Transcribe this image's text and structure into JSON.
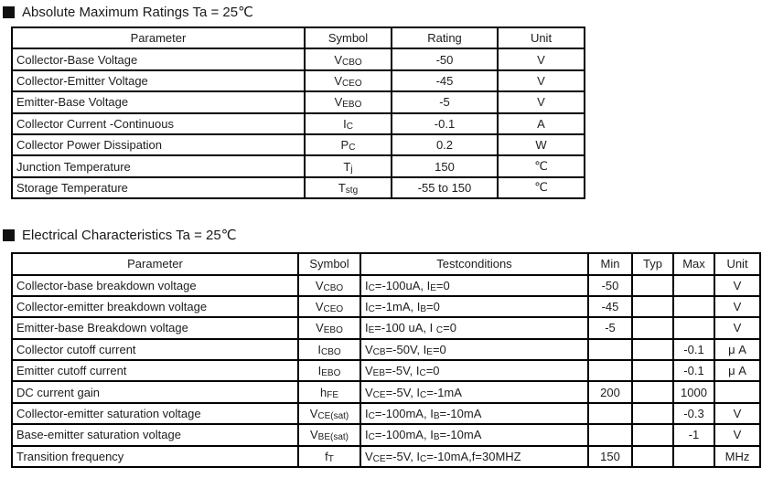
{
  "colors": {
    "background": "#ffffff",
    "text": "#1d1d1d",
    "border": "#000000",
    "bullet": "#111111"
  },
  "abs_max": {
    "title": "Absolute Maximum Ratings Ta = 25℃",
    "headers": [
      "Parameter",
      "Symbol",
      "Rating",
      "Unit"
    ],
    "rows": [
      {
        "parameter": "Collector-Base Voltage",
        "symbol": "V~CBO~",
        "rating": "-50",
        "unit": "V"
      },
      {
        "parameter": "Collector-Emitter Voltage",
        "symbol": "V~CEO~",
        "rating": "-45",
        "unit": "V"
      },
      {
        "parameter": "Emitter-Base Voltage",
        "symbol": "V~EBO~",
        "rating": "-5",
        "unit": "V"
      },
      {
        "parameter": "Collector Current -Continuous",
        "symbol": "I~C~",
        "rating": "-0.1",
        "unit": "A"
      },
      {
        "parameter": "Collector Power Dissipation",
        "symbol": "P~C~",
        "rating": "0.2",
        "unit": "W"
      },
      {
        "parameter": "Junction Temperature",
        "symbol": "T~j~",
        "rating": "150",
        "unit": "℃"
      },
      {
        "parameter": "Storage Temperature",
        "symbol": "T~stg~",
        "rating": "-55 to 150",
        "unit": "℃"
      }
    ]
  },
  "elec_char": {
    "title": "Electrical Characteristics Ta = 25℃",
    "headers": [
      "Parameter",
      "Symbol",
      "Testconditions",
      "Min",
      "Typ",
      "Max",
      "Unit"
    ],
    "rows": [
      {
        "parameter": "Collector-base breakdown voltage",
        "symbol": "V~CBO~",
        "conditions": "I~C~=-100uA, I~E~=0",
        "min": "-50",
        "typ": "",
        "max": "",
        "unit": "V"
      },
      {
        "parameter": "Collector-emitter breakdown voltage",
        "symbol": "V~CEO~",
        "conditions": "I~C~=-1mA, I~B~=0",
        "min": "-45",
        "typ": "",
        "max": "",
        "unit": "V"
      },
      {
        "parameter": "Emitter-base Breakdown voltage",
        "symbol": "V~EBO~",
        "conditions": "I~E~=-100 uA, I ~C~=0",
        "min": "-5",
        "typ": "",
        "max": "",
        "unit": "V"
      },
      {
        "parameter": "Collector cutoff current",
        "symbol": "I~CBO~",
        "conditions": "V~CB~=-50V, I~E~=0",
        "min": "",
        "typ": "",
        "max": "-0.1",
        "unit": "μ A"
      },
      {
        "parameter": "Emitter cutoff current",
        "symbol": "I~EBO~",
        "conditions": "V~EB~=-5V, I~C~=0",
        "min": "",
        "typ": "",
        "max": "-0.1",
        "unit": "μ A"
      },
      {
        "parameter": "DC current gain",
        "symbol": "h~FE~",
        "conditions": "V~CE~=-5V, I~C~=-1mA",
        "min": "200",
        "typ": "",
        "max": "1000",
        "unit": ""
      },
      {
        "parameter": "Collector-emitter saturation voltage",
        "symbol": "V~CE(sat)~",
        "conditions": "I~C~=-100mA, I~B~=-10mA",
        "min": "",
        "typ": "",
        "max": "-0.3",
        "unit": "V"
      },
      {
        "parameter": "Base-emitter saturation voltage",
        "symbol": "V~BE(sat)~",
        "conditions": "I~C~=-100mA, I~B~=-10mA",
        "min": "",
        "typ": "",
        "max": "-1",
        "unit": "V"
      },
      {
        "parameter": "Transition frequency",
        "symbol": "f~T~",
        "conditions": "V~CE~=-5V, I~C~=-10mA,f=30MHZ",
        "min": "150",
        "typ": "",
        "max": "",
        "unit": "MHz"
      }
    ]
  }
}
